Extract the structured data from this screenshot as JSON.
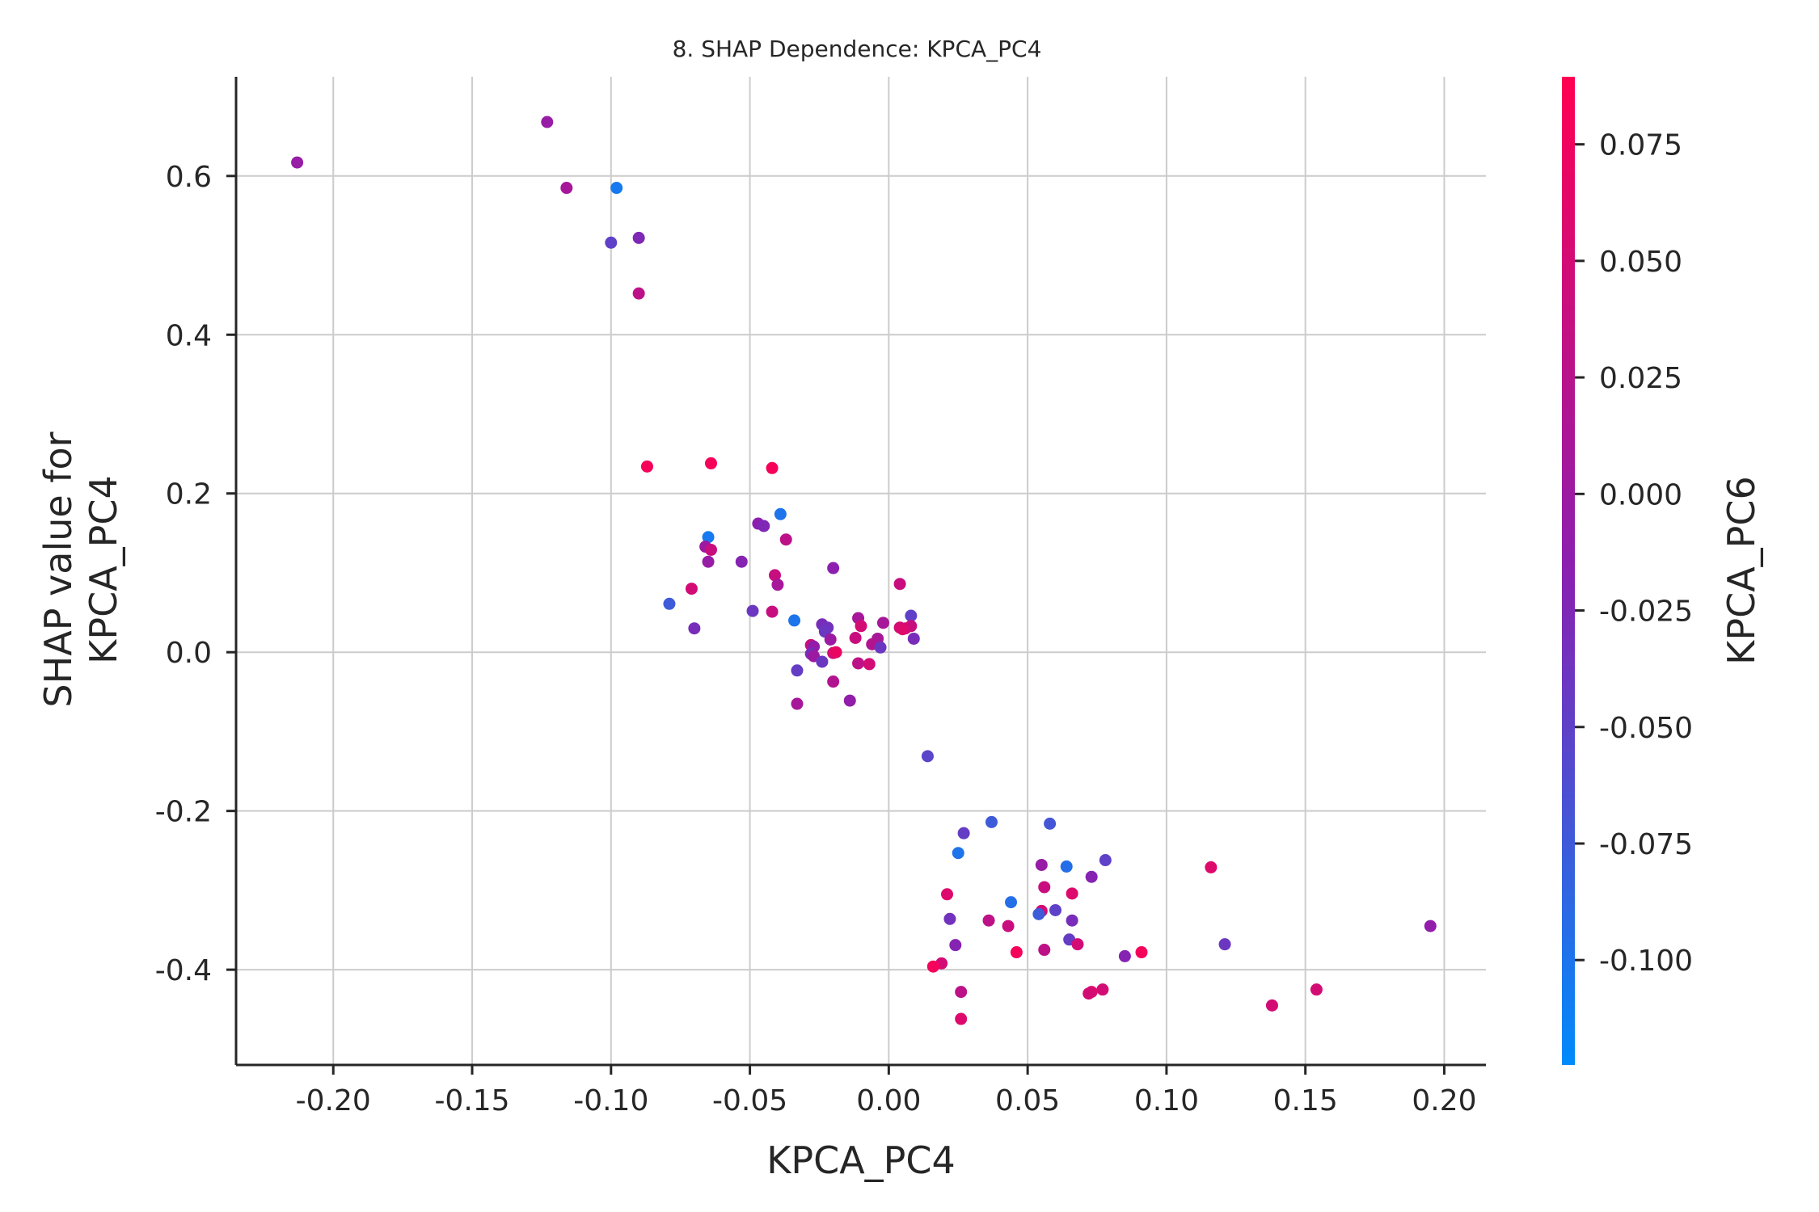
{
  "chart_data": {
    "type": "scatter",
    "title": "8. SHAP Dependence: KPCA_PC4",
    "xlabel": "KPCA_PC4",
    "ylabel_lines": [
      "SHAP value for",
      "KPCA_PC4"
    ],
    "xlim": [
      -0.235,
      0.215
    ],
    "ylim": [
      -0.52,
      0.725
    ],
    "xticks": [
      -0.2,
      -0.15,
      -0.1,
      -0.05,
      0.0,
      0.05,
      0.1,
      0.15,
      0.2
    ],
    "xtick_labels": [
      "-0.20",
      "-0.15",
      "-0.10",
      "-0.05",
      "0.00",
      "0.05",
      "0.10",
      "0.15",
      "0.20"
    ],
    "yticks": [
      -0.4,
      -0.2,
      0.0,
      0.2,
      0.4,
      0.6
    ],
    "ytick_labels": [
      "-0.4",
      "-0.2",
      "0.0",
      "0.2",
      "0.4",
      "0.6"
    ],
    "grid": true,
    "colorbar": {
      "label": "KPCA_PC6",
      "range": [
        -0.1225,
        0.0895
      ],
      "ticks": [
        -0.1,
        -0.075,
        -0.05,
        -0.025,
        0.0,
        0.025,
        0.05,
        0.075
      ],
      "tick_labels": [
        "-0.100",
        "-0.075",
        "-0.050",
        "-0.025",
        "0.000",
        "0.025",
        "0.050",
        "0.075"
      ],
      "color_low": "#008bfb",
      "color_mid": "#8a1fb0",
      "color_high": "#ff0052"
    },
    "points": [
      {
        "x": -0.213,
        "y": 0.617,
        "c": -0.005
      },
      {
        "x": -0.123,
        "y": 0.668,
        "c": -0.005
      },
      {
        "x": -0.116,
        "y": 0.585,
        "c": 0.01
      },
      {
        "x": -0.098,
        "y": 0.585,
        "c": -0.105
      },
      {
        "x": -0.1,
        "y": 0.516,
        "c": -0.05
      },
      {
        "x": -0.09,
        "y": 0.522,
        "c": -0.025
      },
      {
        "x": -0.09,
        "y": 0.452,
        "c": 0.03
      },
      {
        "x": -0.087,
        "y": 0.234,
        "c": 0.08
      },
      {
        "x": -0.064,
        "y": 0.238,
        "c": 0.08
      },
      {
        "x": -0.042,
        "y": 0.232,
        "c": 0.08
      },
      {
        "x": -0.039,
        "y": 0.174,
        "c": -0.1
      },
      {
        "x": -0.047,
        "y": 0.162,
        "c": -0.015
      },
      {
        "x": -0.045,
        "y": 0.159,
        "c": -0.025
      },
      {
        "x": -0.065,
        "y": 0.145,
        "c": -0.105
      },
      {
        "x": -0.037,
        "y": 0.142,
        "c": 0.03
      },
      {
        "x": -0.066,
        "y": 0.133,
        "c": 0.0
      },
      {
        "x": -0.064,
        "y": 0.129,
        "c": 0.04
      },
      {
        "x": -0.053,
        "y": 0.114,
        "c": -0.02
      },
      {
        "x": -0.065,
        "y": 0.114,
        "c": -0.005
      },
      {
        "x": -0.02,
        "y": 0.106,
        "c": -0.015
      },
      {
        "x": -0.041,
        "y": 0.097,
        "c": 0.04
      },
      {
        "x": -0.04,
        "y": 0.085,
        "c": 0.01
      },
      {
        "x": 0.004,
        "y": 0.086,
        "c": 0.04
      },
      {
        "x": -0.071,
        "y": 0.08,
        "c": 0.05
      },
      {
        "x": -0.079,
        "y": 0.061,
        "c": -0.075
      },
      {
        "x": -0.049,
        "y": 0.052,
        "c": -0.04
      },
      {
        "x": -0.042,
        "y": 0.051,
        "c": 0.04
      },
      {
        "x": -0.011,
        "y": 0.043,
        "c": 0.01
      },
      {
        "x": 0.008,
        "y": 0.046,
        "c": -0.05
      },
      {
        "x": -0.034,
        "y": 0.04,
        "c": -0.1
      },
      {
        "x": -0.002,
        "y": 0.037,
        "c": 0.01
      },
      {
        "x": -0.024,
        "y": 0.035,
        "c": -0.03
      },
      {
        "x": -0.07,
        "y": 0.03,
        "c": -0.03
      },
      {
        "x": -0.01,
        "y": 0.033,
        "c": 0.05
      },
      {
        "x": 0.004,
        "y": 0.031,
        "c": 0.05
      },
      {
        "x": 0.006,
        "y": 0.03,
        "c": 0.05
      },
      {
        "x": 0.008,
        "y": 0.033,
        "c": 0.04
      },
      {
        "x": -0.022,
        "y": 0.031,
        "c": -0.035
      },
      {
        "x": 0.005,
        "y": 0.029,
        "c": 0.06
      },
      {
        "x": -0.023,
        "y": 0.026,
        "c": -0.04
      },
      {
        "x": -0.012,
        "y": 0.018,
        "c": 0.04
      },
      {
        "x": -0.004,
        "y": 0.017,
        "c": 0.01
      },
      {
        "x": -0.021,
        "y": 0.016,
        "c": 0.0
      },
      {
        "x": 0.009,
        "y": 0.017,
        "c": -0.03
      },
      {
        "x": -0.006,
        "y": 0.01,
        "c": 0.02
      },
      {
        "x": -0.028,
        "y": 0.009,
        "c": 0.04
      },
      {
        "x": -0.027,
        "y": 0.007,
        "c": -0.01
      },
      {
        "x": -0.003,
        "y": 0.006,
        "c": -0.04
      },
      {
        "x": -0.028,
        "y": -0.002,
        "c": -0.03
      },
      {
        "x": -0.02,
        "y": -0.001,
        "c": 0.05
      },
      {
        "x": -0.027,
        "y": -0.005,
        "c": 0.0
      },
      {
        "x": -0.019,
        "y": 0.0,
        "c": 0.07
      },
      {
        "x": -0.024,
        "y": -0.012,
        "c": -0.04
      },
      {
        "x": -0.011,
        "y": -0.014,
        "c": 0.03
      },
      {
        "x": -0.007,
        "y": -0.015,
        "c": 0.05
      },
      {
        "x": -0.033,
        "y": -0.023,
        "c": -0.045
      },
      {
        "x": -0.02,
        "y": -0.037,
        "c": 0.02
      },
      {
        "x": -0.014,
        "y": -0.061,
        "c": -0.01
      },
      {
        "x": -0.033,
        "y": -0.065,
        "c": 0.01
      },
      {
        "x": 0.014,
        "y": -0.131,
        "c": -0.055
      },
      {
        "x": 0.037,
        "y": -0.214,
        "c": -0.075
      },
      {
        "x": 0.058,
        "y": -0.216,
        "c": -0.07
      },
      {
        "x": 0.027,
        "y": -0.228,
        "c": -0.045
      },
      {
        "x": 0.025,
        "y": -0.253,
        "c": -0.1
      },
      {
        "x": 0.078,
        "y": -0.262,
        "c": -0.05
      },
      {
        "x": 0.055,
        "y": -0.268,
        "c": -0.005
      },
      {
        "x": 0.064,
        "y": -0.27,
        "c": -0.095
      },
      {
        "x": 0.116,
        "y": -0.271,
        "c": 0.06
      },
      {
        "x": 0.073,
        "y": -0.283,
        "c": -0.02
      },
      {
        "x": 0.056,
        "y": -0.296,
        "c": 0.04
      },
      {
        "x": 0.066,
        "y": -0.304,
        "c": 0.06
      },
      {
        "x": 0.021,
        "y": -0.305,
        "c": 0.06
      },
      {
        "x": 0.044,
        "y": -0.315,
        "c": -0.095
      },
      {
        "x": 0.06,
        "y": -0.325,
        "c": -0.05
      },
      {
        "x": 0.055,
        "y": -0.326,
        "c": 0.05
      },
      {
        "x": 0.054,
        "y": -0.33,
        "c": -0.075
      },
      {
        "x": 0.022,
        "y": -0.336,
        "c": -0.035
      },
      {
        "x": 0.036,
        "y": -0.338,
        "c": 0.03
      },
      {
        "x": 0.066,
        "y": -0.338,
        "c": -0.03
      },
      {
        "x": 0.043,
        "y": -0.345,
        "c": 0.04
      },
      {
        "x": 0.195,
        "y": -0.345,
        "c": -0.01
      },
      {
        "x": 0.065,
        "y": -0.362,
        "c": -0.045
      },
      {
        "x": 0.121,
        "y": -0.368,
        "c": -0.04
      },
      {
        "x": 0.068,
        "y": -0.368,
        "c": 0.05
      },
      {
        "x": 0.024,
        "y": -0.369,
        "c": -0.02
      },
      {
        "x": 0.056,
        "y": -0.375,
        "c": 0.03
      },
      {
        "x": 0.046,
        "y": -0.378,
        "c": 0.08
      },
      {
        "x": 0.091,
        "y": -0.378,
        "c": 0.08
      },
      {
        "x": 0.085,
        "y": -0.383,
        "c": -0.02
      },
      {
        "x": 0.019,
        "y": -0.392,
        "c": 0.05
      },
      {
        "x": 0.016,
        "y": -0.396,
        "c": 0.08
      },
      {
        "x": 0.077,
        "y": -0.425,
        "c": 0.05
      },
      {
        "x": 0.154,
        "y": -0.425,
        "c": 0.05
      },
      {
        "x": 0.026,
        "y": -0.428,
        "c": 0.03
      },
      {
        "x": 0.073,
        "y": -0.428,
        "c": 0.06
      },
      {
        "x": 0.072,
        "y": -0.43,
        "c": 0.05
      },
      {
        "x": 0.138,
        "y": -0.445,
        "c": 0.05
      },
      {
        "x": 0.026,
        "y": -0.462,
        "c": 0.06
      }
    ]
  }
}
